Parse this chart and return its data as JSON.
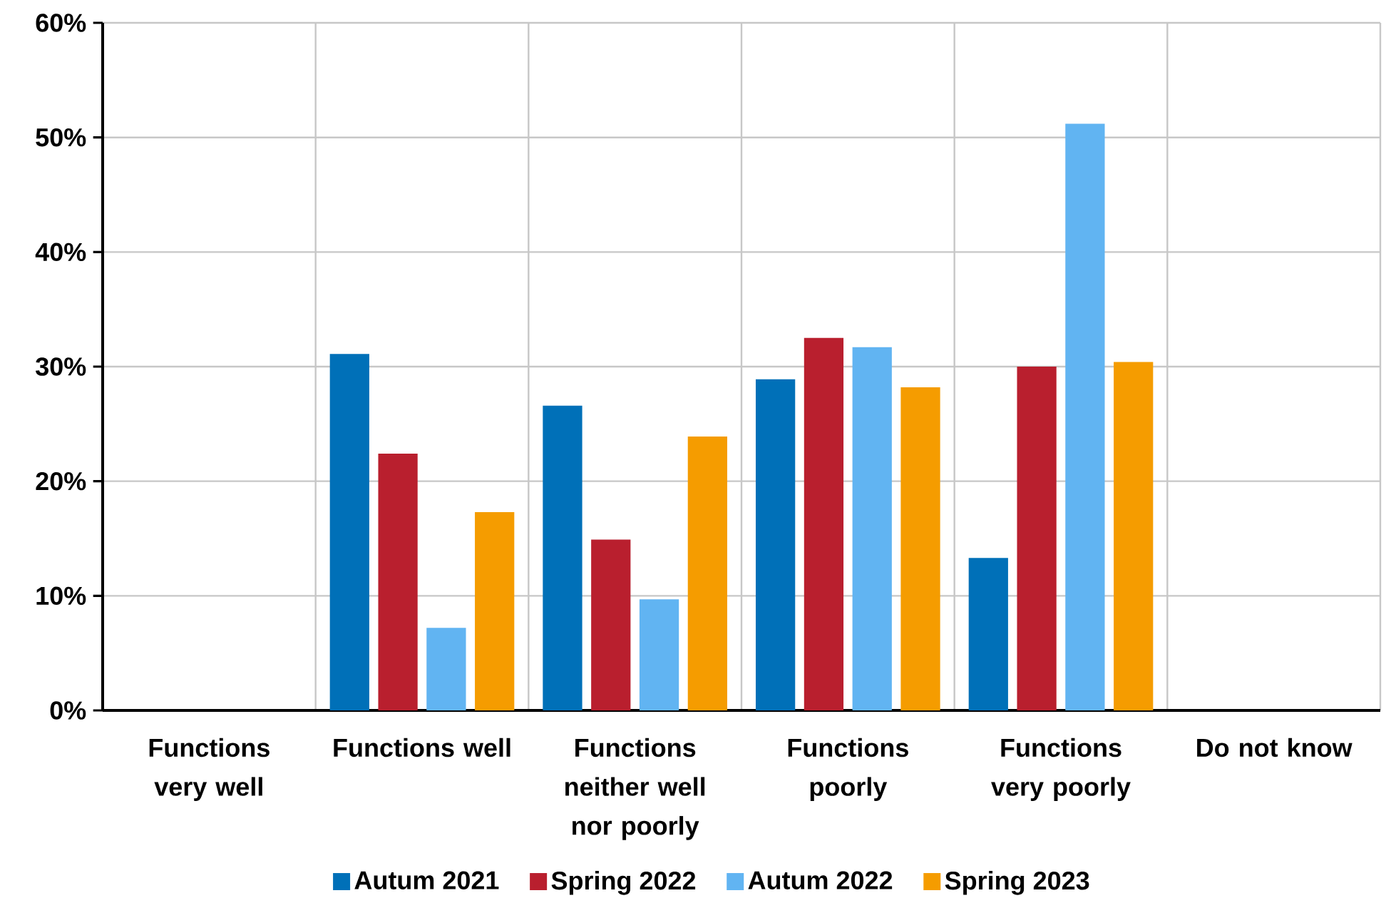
{
  "chart_data": {
    "type": "bar",
    "categories": [
      "Functions very well",
      "Functions well",
      "Functions neither well nor poorly",
      "Functions poorly",
      "Functions very poorly",
      "Do not know"
    ],
    "series": [
      {
        "name": "Autum 2021",
        "color": "#0070b8",
        "values": [
          null,
          31.1,
          26.6,
          28.9,
          13.3,
          null
        ]
      },
      {
        "name": "Spring 2022",
        "color": "#b91f2e",
        "values": [
          null,
          22.4,
          14.9,
          32.5,
          30.0,
          null
        ]
      },
      {
        "name": "Autum 2022",
        "color": "#61b4f2",
        "values": [
          null,
          7.2,
          9.7,
          31.7,
          51.2,
          null
        ]
      },
      {
        "name": "Spring 2023",
        "color": "#f59c00",
        "values": [
          null,
          17.3,
          23.9,
          28.2,
          30.4,
          null
        ]
      }
    ],
    "ylim": [
      0,
      60
    ],
    "yticks": [
      {
        "value": 0,
        "label": "0%"
      },
      {
        "value": 10,
        "label": "10%"
      },
      {
        "value": 20,
        "label": "20%"
      },
      {
        "value": 30,
        "label": "30%"
      },
      {
        "value": 40,
        "label": "40%"
      },
      {
        "value": 50,
        "label": "50%"
      },
      {
        "value": 60,
        "label": "60%"
      }
    ],
    "grid": true,
    "legend": "bottom"
  }
}
